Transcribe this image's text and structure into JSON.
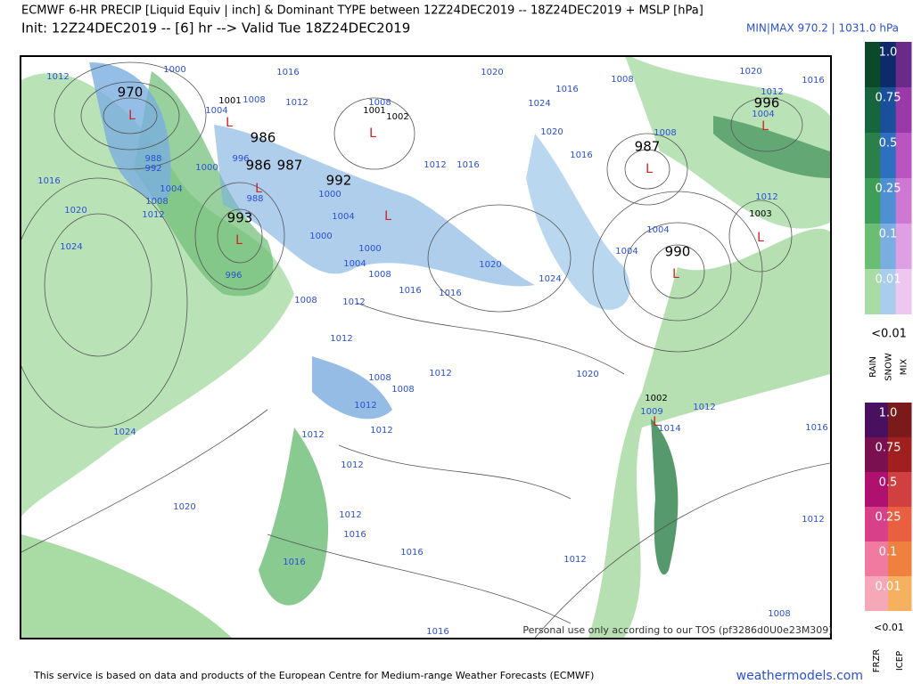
{
  "header": {
    "title": "ECMWF 6-HR PRECIP [Liquid Equiv | inch] & Dominant TYPE between 12Z24DEC2019 -- 18Z24DEC2019 + MSLP [hPa]",
    "subtitle": "Init: 12Z24DEC2019 -- [6] hr --> Valid Tue 18Z24DEC2019",
    "minmax": "MIN|MAX 970.2 | 1031.0 hPa"
  },
  "map": {
    "center_labels": [
      "970",
      "986",
      "986",
      "987",
      "992",
      "993",
      "996",
      "987",
      "990"
    ],
    "small_center_labels": [
      "1001",
      "1001",
      "1002",
      "1003",
      "1002"
    ],
    "low_marker": "L",
    "isobar_labels": [
      "1012",
      "1000",
      "1016",
      "1008",
      "1012",
      "1004",
      "1008",
      "1020",
      "1024",
      "1016",
      "1008",
      "1020",
      "1012",
      "1016",
      "1004",
      "1008",
      "1020",
      "1016",
      "1012",
      "1016",
      "988",
      "992",
      "1004",
      "1008",
      "1012",
      "1016",
      "1020",
      "1024",
      "996",
      "1000",
      "996",
      "988",
      "1000",
      "1004",
      "1000",
      "1000",
      "1004",
      "1008",
      "1016",
      "1016",
      "1020",
      "1024",
      "1004",
      "1004",
      "1012",
      "1008",
      "1012",
      "1012",
      "1012",
      "1020",
      "1008",
      "1008",
      "1012",
      "1012",
      "1012",
      "1012",
      "1009",
      "1014",
      "1012",
      "1016",
      "1024",
      "1020",
      "1012",
      "1016",
      "1016",
      "1016",
      "1012",
      "1012",
      "1008",
      "1016"
    ],
    "notice": "Personal use only according to our TOS (pf3286d0U0e23M309)"
  },
  "legend": {
    "levels": [
      "1.0",
      "0.75",
      "0.5",
      "0.25",
      "0.1",
      "0.01"
    ],
    "below": "<0.01",
    "types_top": [
      "RAIN",
      "SNOW",
      "MIX"
    ],
    "types_bottom": [
      "FRZR",
      "ICEP"
    ]
  },
  "footer": {
    "source": "This service is based on data and products of the European Centre for Medium-range Weather Forecasts (ECMWF)",
    "brand": "weathermodels.com"
  }
}
